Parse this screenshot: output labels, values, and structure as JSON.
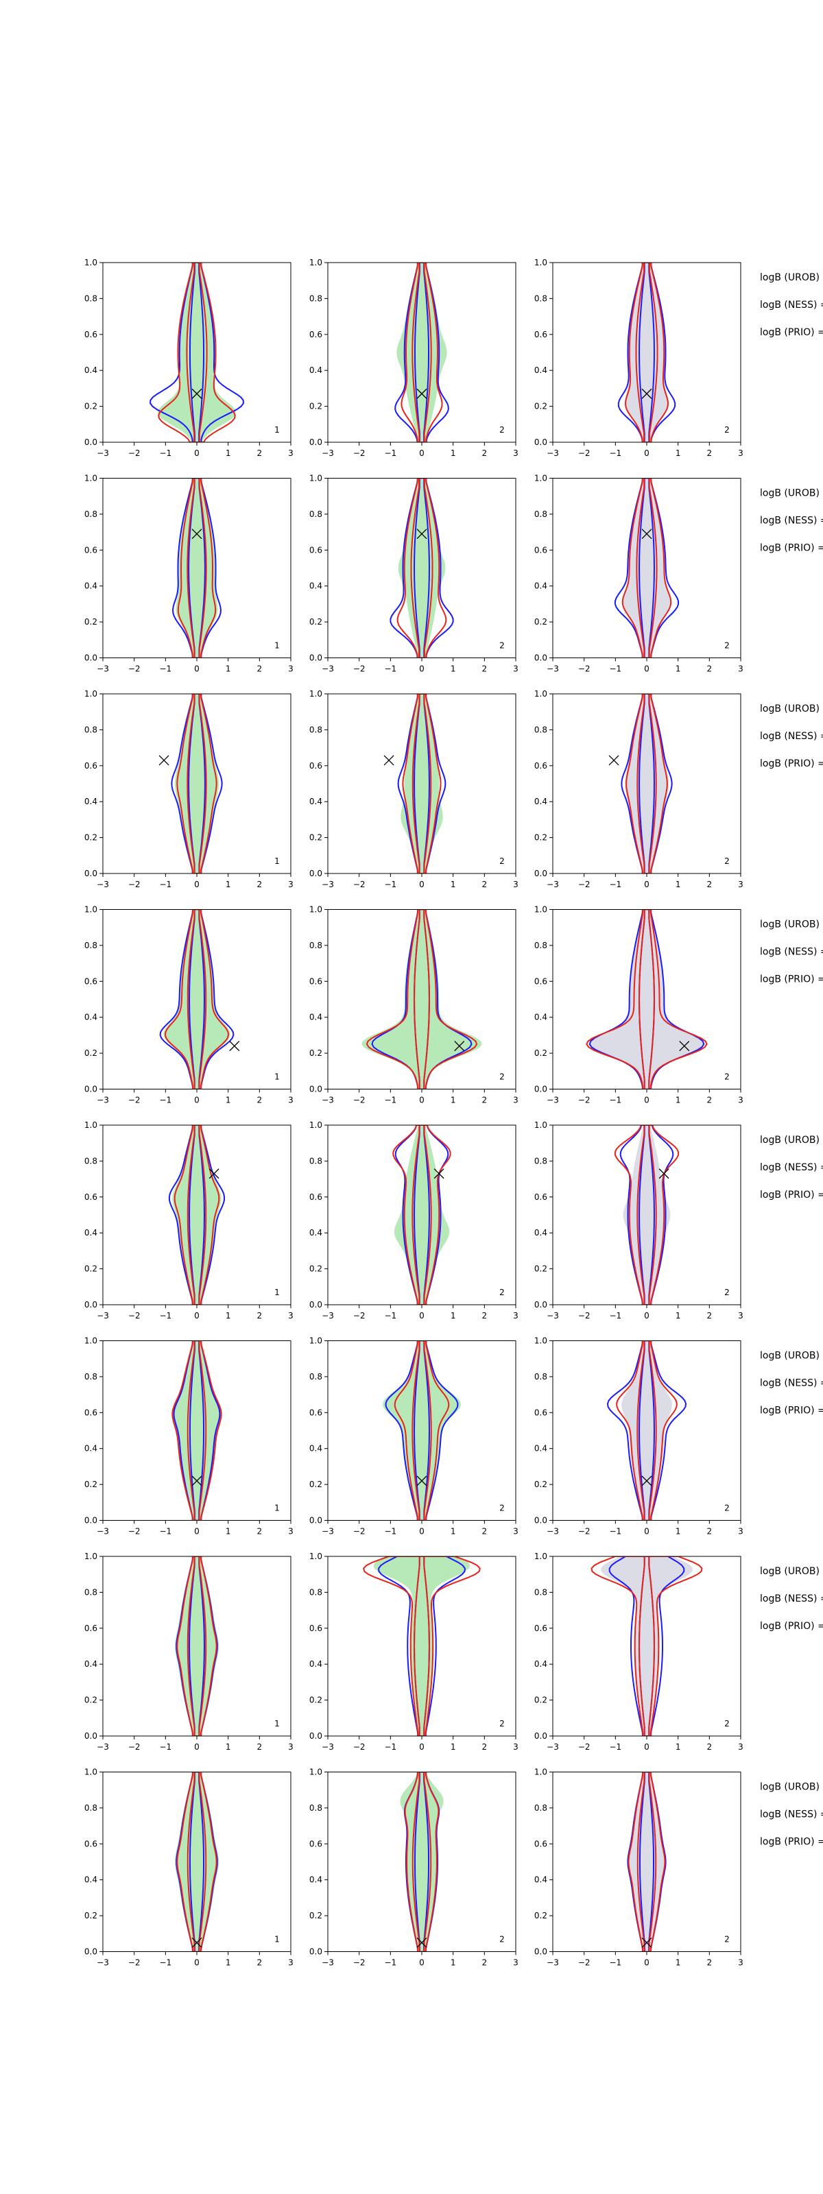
{
  "chart_data": {
    "type": "contour-grid",
    "layout": {
      "rows": 8,
      "cols": 3
    },
    "xlim": [
      -3,
      3
    ],
    "ylim": [
      0,
      1
    ],
    "xticks": [
      -3,
      -2,
      -1,
      0,
      1,
      2,
      3
    ],
    "yticks": [
      0.0,
      0.2,
      0.4,
      0.6,
      0.8,
      1.0
    ],
    "grid": false,
    "colors": {
      "blue_contour": "#1a1aff",
      "red_contour": "#e8231a",
      "green_fill": "#b7e8b7",
      "gray_fill": "#dcdce6"
    },
    "column_fill": [
      "green",
      "green",
      "gray"
    ],
    "column_contours": [
      [
        "blue",
        "red"
      ],
      [
        "blue",
        "red"
      ],
      [
        "blue",
        "red"
      ]
    ],
    "panel_tags": [
      "1",
      "2",
      "2"
    ],
    "side_labels": [
      "logB (UROB) =",
      "logB (NESS) =",
      "logB (PRIO) ="
    ],
    "rows": [
      {
        "marker": [
          0.0,
          0.27
        ],
        "panels": [
          {
            "blue": {
              "outer": 0.9,
              "inner": 0.18,
              "bulge": 0.22,
              "bulge_w": 1.1
            },
            "red": {
              "outer": 1.0,
              "inner": 0.28,
              "bulge": 0.14,
              "bulge_w": 0.9
            },
            "fill": {
              "w": 1.0,
              "bulge": 0.16,
              "bulge_w": 0.9
            }
          },
          {
            "blue": {
              "outer": 0.9,
              "inner": 0.18,
              "bulge": 0.18,
              "bulge_w": 0.5
            },
            "red": {
              "outer": 0.8,
              "inner": 0.26,
              "bulge": 0.2,
              "bulge_w": 0.3
            },
            "fill": {
              "w": 1.0,
              "bulge": 0.5,
              "bulge_w": 0.2
            }
          },
          {
            "blue": {
              "outer": 1.0,
              "inner": 0.2,
              "bulge": 0.2,
              "bulge_w": 0.5
            },
            "red": {
              "outer": 0.9,
              "inner": 0.3,
              "bulge": 0.2,
              "bulge_w": 0.3
            },
            "fill": {
              "w": 1.0,
              "bulge": 0.2,
              "bulge_w": 0.3
            }
          }
        ]
      },
      {
        "marker": [
          0.0,
          0.69
        ],
        "panels": [
          {
            "blue": {
              "outer": 1.0,
              "inner": 0.22,
              "bulge": 0.25,
              "bulge_w": 0.3
            },
            "red": {
              "outer": 0.8,
              "inner": 0.26,
              "bulge": 0.25,
              "bulge_w": 0.2
            },
            "fill": {
              "w": 1.0,
              "bulge": 0.25,
              "bulge_w": 0.2
            }
          },
          {
            "blue": {
              "outer": 1.0,
              "inner": 0.2,
              "bulge": 0.2,
              "bulge_w": 0.6
            },
            "red": {
              "outer": 0.9,
              "inner": 0.3,
              "bulge": 0.2,
              "bulge_w": 0.4
            },
            "fill": {
              "w": 0.9,
              "bulge": 0.5,
              "bulge_w": 0.2
            }
          },
          {
            "blue": {
              "outer": 1.0,
              "inner": 0.2,
              "bulge": 0.3,
              "bulge_w": 0.5
            },
            "red": {
              "outer": 0.9,
              "inner": 0.28,
              "bulge": 0.3,
              "bulge_w": 0.3
            },
            "fill": {
              "w": 0.9,
              "bulge": 0.3,
              "bulge_w": 0.3
            }
          }
        ]
      },
      {
        "marker": [
          -1.05,
          0.63
        ],
        "panels": [
          {
            "blue": {
              "outer": 1.0,
              "inner": 0.22,
              "bulge": 0.5,
              "bulge_w": 0.2
            },
            "red": {
              "outer": 0.85,
              "inner": 0.26,
              "bulge": 0.5,
              "bulge_w": 0.1
            },
            "fill": {
              "w": 1.0,
              "bulge": 0.5,
              "bulge_w": 0.1
            }
          },
          {
            "blue": {
              "outer": 0.9,
              "inner": 0.2,
              "bulge": 0.5,
              "bulge_w": 0.2
            },
            "red": {
              "outer": 0.8,
              "inner": 0.25,
              "bulge": 0.5,
              "bulge_w": 0.1
            },
            "fill": {
              "w": 0.9,
              "bulge": 0.3,
              "bulge_w": 0.2
            }
          },
          {
            "blue": {
              "outer": 1.0,
              "inner": 0.2,
              "bulge": 0.5,
              "bulge_w": 0.2
            },
            "red": {
              "outer": 0.9,
              "inner": 0.26,
              "bulge": 0.5,
              "bulge_w": 0.1
            },
            "fill": {
              "w": 1.0,
              "bulge": 0.5,
              "bulge_w": 0.1
            }
          }
        ]
      },
      {
        "marker": [
          1.2,
          0.24
        ],
        "panels": [
          {
            "blue": {
              "outer": 0.9,
              "inner": 0.2,
              "bulge": 0.3,
              "bulge_w": 0.7
            },
            "red": {
              "outer": 0.75,
              "inner": 0.25,
              "bulge": 0.3,
              "bulge_w": 0.6
            },
            "fill": {
              "w": 0.9,
              "bulge": 0.3,
              "bulge_w": 0.6
            }
          },
          {
            "blue": {
              "outer": 0.8,
              "inner": 0.2,
              "bulge": 0.25,
              "bulge_w": 1.2
            },
            "red": {
              "outer": 0.7,
              "inner": 0.2,
              "bulge": 0.25,
              "bulge_w": 1.4
            },
            "fill": {
              "w": 0.9,
              "bulge": 0.25,
              "bulge_w": 1.5
            }
          },
          {
            "blue": {
              "outer": 0.9,
              "inner": 0.2,
              "bulge": 0.25,
              "bulge_w": 1.4
            },
            "red": {
              "outer": 0.6,
              "inner": 0.2,
              "bulge": 0.25,
              "bulge_w": 1.6
            },
            "fill": {
              "w": 0.9,
              "bulge": 0.25,
              "bulge_w": 1.4
            }
          }
        ]
      },
      {
        "marker": [
          0.55,
          0.73
        ],
        "panels": [
          {
            "blue": {
              "outer": 1.0,
              "inner": 0.2,
              "bulge": 0.6,
              "bulge_w": 0.3
            },
            "red": {
              "outer": 0.85,
              "inner": 0.25,
              "bulge": 0.6,
              "bulge_w": 0.2
            },
            "fill": {
              "w": 1.0,
              "bulge": 0.6,
              "bulge_w": 0.2
            }
          },
          {
            "blue": {
              "outer": 1.0,
              "inner": 0.2,
              "bulge": 0.85,
              "bulge_w": 0.5
            },
            "red": {
              "outer": 0.9,
              "inner": 0.26,
              "bulge": 0.85,
              "bulge_w": 0.6
            },
            "fill": {
              "w": 1.0,
              "bulge": 0.4,
              "bulge_w": 0.3
            }
          },
          {
            "blue": {
              "outer": 1.0,
              "inner": 0.2,
              "bulge": 0.85,
              "bulge_w": 0.5
            },
            "red": {
              "outer": 0.9,
              "inner": 0.26,
              "bulge": 0.85,
              "bulge_w": 0.7
            },
            "fill": {
              "w": 0.9,
              "bulge": 0.5,
              "bulge_w": 0.2
            }
          }
        ]
      },
      {
        "marker": [
          0.0,
          0.22
        ],
        "panels": [
          {
            "blue": {
              "outer": 0.9,
              "inner": 0.18,
              "bulge": 0.6,
              "bulge_w": 0.2
            },
            "red": {
              "outer": 1.0,
              "inner": 0.25,
              "bulge": 0.6,
              "bulge_w": 0.2
            },
            "fill": {
              "w": 1.0,
              "bulge": 0.6,
              "bulge_w": 0.2
            }
          },
          {
            "blue": {
              "outer": 1.0,
              "inner": 0.2,
              "bulge": 0.65,
              "bulge_w": 0.6
            },
            "red": {
              "outer": 0.8,
              "inner": 0.26,
              "bulge": 0.65,
              "bulge_w": 0.4
            },
            "fill": {
              "w": 1.0,
              "bulge": 0.65,
              "bulge_w": 0.7
            }
          },
          {
            "blue": {
              "outer": 1.0,
              "inner": 0.2,
              "bulge": 0.65,
              "bulge_w": 0.7
            },
            "red": {
              "outer": 0.8,
              "inner": 0.26,
              "bulge": 0.65,
              "bulge_w": 0.5
            },
            "fill": {
              "w": 0.9,
              "bulge": 0.65,
              "bulge_w": 0.3
            }
          }
        ]
      },
      {
        "marker": null,
        "panels": [
          {
            "blue": {
              "outer": 0.9,
              "inner": 0.2,
              "bulge": 0.5,
              "bulge_w": 0.1
            },
            "red": {
              "outer": 0.85,
              "inner": 0.25,
              "bulge": 0.5,
              "bulge_w": 0.1
            },
            "fill": {
              "w": 1.0,
              "bulge": 0.5,
              "bulge_w": 0.1
            }
          },
          {
            "blue": {
              "outer": 0.7,
              "inner": 0.2,
              "bulge": 0.93,
              "bulge_w": 1.2
            },
            "red": {
              "outer": 0.5,
              "inner": 0.2,
              "bulge": 0.93,
              "bulge_w": 1.7
            },
            "fill": {
              "w": 0.5,
              "bulge": 0.95,
              "bulge_w": 1.4
            }
          },
          {
            "blue": {
              "outer": 0.8,
              "inner": 0.2,
              "bulge": 0.93,
              "bulge_w": 1.0
            },
            "red": {
              "outer": 0.55,
              "inner": 0.2,
              "bulge": 0.93,
              "bulge_w": 1.6
            },
            "fill": {
              "w": 0.6,
              "bulge": 0.93,
              "bulge_w": 1.3
            }
          }
        ]
      },
      {
        "marker": [
          0.0,
          0.05
        ],
        "panels": [
          {
            "blue": {
              "outer": 0.9,
              "inner": 0.18,
              "bulge": 0.5,
              "bulge_w": 0.1
            },
            "red": {
              "outer": 0.85,
              "inner": 0.25,
              "bulge": 0.5,
              "bulge_w": 0.1
            },
            "fill": {
              "w": 1.0,
              "bulge": 0.5,
              "bulge_w": 0.1
            }
          },
          {
            "blue": {
              "outer": 0.8,
              "inner": 0.18,
              "bulge": 0.8,
              "bulge_w": 0.2
            },
            "red": {
              "outer": 0.75,
              "inner": 0.25,
              "bulge": 0.8,
              "bulge_w": 0.2
            },
            "fill": {
              "w": 0.8,
              "bulge": 0.85,
              "bulge_w": 0.4
            }
          },
          {
            "blue": {
              "outer": 0.8,
              "inner": 0.18,
              "bulge": 0.5,
              "bulge_w": 0.1
            },
            "red": {
              "outer": 0.75,
              "inner": 0.25,
              "bulge": 0.5,
              "bulge_w": 0.1
            },
            "fill": {
              "w": 0.8,
              "bulge": 0.5,
              "bulge_w": 0.1
            }
          }
        ]
      }
    ]
  }
}
